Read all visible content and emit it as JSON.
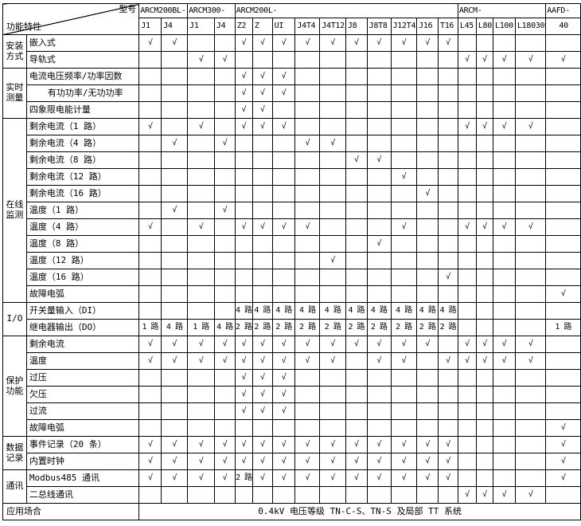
{
  "header": {
    "model_label": "型号",
    "feature_label": "功能特性",
    "groups": [
      {
        "name": "ARCM200BL-",
        "cols": [
          "J1",
          "J4"
        ]
      },
      {
        "name": "ARCM300-",
        "cols": [
          "J1",
          "J4"
        ]
      },
      {
        "name": "ARCM200L-",
        "cols": [
          "Z2",
          "Z",
          "UI",
          "J4T4",
          "J4T12",
          "J8",
          "J8T8",
          "J12T4",
          "J16",
          "T16"
        ]
      },
      {
        "name": "ARCM-",
        "cols": [
          "L45",
          "L80",
          "L100",
          "L18030"
        ]
      },
      {
        "name": "AAFD-",
        "cols": [
          "40"
        ]
      }
    ]
  },
  "check_glyph": "√",
  "row_groups": [
    {
      "name": "安装方式",
      "display_lines": [
        "安装",
        "方式"
      ],
      "rows": [
        {
          "label": "嵌入式",
          "cells": [
            "√",
            "√",
            "",
            "",
            "√",
            "√",
            "√",
            "√",
            "√",
            "√",
            "√",
            "√",
            "√",
            "√",
            "",
            "",
            "",
            "",
            ""
          ]
        },
        {
          "label": "导轨式",
          "cells": [
            "",
            "",
            "√",
            "√",
            "",
            "",
            "",
            "",
            "",
            "",
            "",
            "",
            "",
            "",
            "√",
            "√",
            "√",
            "√",
            "√"
          ]
        }
      ]
    },
    {
      "name": "实时测量",
      "display_lines": [
        "实时",
        "测量"
      ],
      "rows": [
        {
          "label": "电流电压频率/功率因数",
          "cells": [
            "",
            "",
            "",
            "",
            "√",
            "√",
            "√",
            "",
            "",
            "",
            "",
            "",
            "",
            "",
            "",
            "",
            "",
            "",
            ""
          ]
        },
        {
          "label": "有功功率/无功功率",
          "indent": true,
          "cells": [
            "",
            "",
            "",
            "",
            "√",
            "√",
            "√",
            "",
            "",
            "",
            "",
            "",
            "",
            "",
            "",
            "",
            "",
            "",
            ""
          ]
        },
        {
          "label": "四象限电能计量",
          "cells": [
            "",
            "",
            "",
            "",
            "√",
            "√",
            "",
            "",
            "",
            "",
            "",
            "",
            "",
            "",
            "",
            "",
            "",
            "",
            ""
          ]
        }
      ]
    },
    {
      "name": "在线监测",
      "display_lines": [
        "在线",
        "监测"
      ],
      "rows": [
        {
          "label": "剩余电流（1 路）",
          "cells": [
            "√",
            "",
            "√",
            "",
            "√",
            "√",
            "√",
            "",
            "",
            "",
            "",
            "",
            "",
            "",
            "√",
            "√",
            "√",
            "√",
            ""
          ]
        },
        {
          "label": "剩余电流（4 路）",
          "cells": [
            "",
            "√",
            "",
            "√",
            "",
            "",
            "",
            "√",
            "√",
            "",
            "",
            "",
            "",
            "",
            "",
            "",
            "",
            "",
            ""
          ]
        },
        {
          "label": "剩余电流（8 路）",
          "cells": [
            "",
            "",
            "",
            "",
            "",
            "",
            "",
            "",
            "",
            "√",
            "√",
            "",
            "",
            "",
            "",
            "",
            "",
            "",
            ""
          ]
        },
        {
          "label": "剩余电流（12 路）",
          "cells": [
            "",
            "",
            "",
            "",
            "",
            "",
            "",
            "",
            "",
            "",
            "",
            "√",
            "",
            "",
            "",
            "",
            "",
            "",
            ""
          ]
        },
        {
          "label": "剩余电流（16 路）",
          "cells": [
            "",
            "",
            "",
            "",
            "",
            "",
            "",
            "",
            "",
            "",
            "",
            "",
            "√",
            "",
            "",
            "",
            "",
            "",
            ""
          ]
        },
        {
          "label": "温度（1 路）",
          "cells": [
            "",
            "√",
            "",
            "√",
            "",
            "",
            "",
            "",
            "",
            "",
            "",
            "",
            "",
            "",
            "",
            "",
            "",
            "",
            ""
          ]
        },
        {
          "label": "温度（4 路）",
          "cells": [
            "√",
            "",
            "√",
            "",
            "√",
            "√",
            "√",
            "√",
            "",
            "",
            "",
            "√",
            "",
            "",
            "√",
            "√",
            "√",
            "√",
            ""
          ]
        },
        {
          "label": "温度（8 路）",
          "cells": [
            "",
            "",
            "",
            "",
            "",
            "",
            "",
            "",
            "",
            "",
            "√",
            "",
            "",
            "",
            "",
            "",
            "",
            "",
            ""
          ]
        },
        {
          "label": "温度（12 路）",
          "cells": [
            "",
            "",
            "",
            "",
            "",
            "",
            "",
            "",
            "√",
            "",
            "",
            "",
            "",
            "",
            "",
            "",
            "",
            "",
            ""
          ]
        },
        {
          "label": "温度（16 路）",
          "cells": [
            "",
            "",
            "",
            "",
            "",
            "",
            "",
            "",
            "",
            "",
            "",
            "",
            "",
            "√",
            "",
            "",
            "",
            "",
            ""
          ]
        },
        {
          "label": "故障电弧",
          "cells": [
            "",
            "",
            "",
            "",
            "",
            "",
            "",
            "",
            "",
            "",
            "",
            "",
            "",
            "",
            "",
            "",
            "",
            "",
            "√"
          ]
        }
      ]
    },
    {
      "name": "I/O",
      "display_lines": [
        "I/O"
      ],
      "rows": [
        {
          "label": "开关量输入（DI）",
          "cells": [
            "",
            "",
            "",
            "",
            "4 路",
            "4 路",
            "4 路",
            "4 路",
            "4 路",
            "4 路",
            "4 路",
            "4 路",
            "4 路",
            "4 路",
            "",
            "",
            "",
            "",
            ""
          ]
        },
        {
          "label": "继电器输出（DO）",
          "cells": [
            "1 路",
            "4 路",
            "1 路",
            "4 路",
            "2 路",
            "2 路",
            "2 路",
            "2 路",
            "2 路",
            "2 路",
            "2 路",
            "2 路",
            "2 路",
            "2 路",
            "",
            "",
            "",
            "",
            "1 路"
          ]
        }
      ]
    },
    {
      "name": "保护功能",
      "display_lines": [
        "保护",
        "功能"
      ],
      "rows": [
        {
          "label": "剩余电流",
          "cells": [
            "√",
            "√",
            "√",
            "√",
            "√",
            "√",
            "√",
            "√",
            "√",
            "√",
            "√",
            "√",
            "√",
            "",
            "√",
            "√",
            "√",
            "√",
            ""
          ]
        },
        {
          "label": "温度",
          "cells": [
            "√",
            "√",
            "√",
            "√",
            "√",
            "√",
            "√",
            "√",
            "√",
            "",
            "√",
            "√",
            "",
            "√",
            "√",
            "√",
            "√",
            "√",
            ""
          ]
        },
        {
          "label": "过压",
          "cells": [
            "",
            "",
            "",
            "",
            "√",
            "√",
            "√",
            "",
            "",
            "",
            "",
            "",
            "",
            "",
            "",
            "",
            "",
            "",
            ""
          ]
        },
        {
          "label": "欠压",
          "cells": [
            "",
            "",
            "",
            "",
            "√",
            "√",
            "√",
            "",
            "",
            "",
            "",
            "",
            "",
            "",
            "",
            "",
            "",
            "",
            ""
          ]
        },
        {
          "label": "过流",
          "cells": [
            "",
            "",
            "",
            "",
            "√",
            "√",
            "√",
            "",
            "",
            "",
            "",
            "",
            "",
            "",
            "",
            "",
            "",
            "",
            ""
          ]
        },
        {
          "label": "故障电弧",
          "cells": [
            "",
            "",
            "",
            "",
            "",
            "",
            "",
            "",
            "",
            "",
            "",
            "",
            "",
            "",
            "",
            "",
            "",
            "",
            "√"
          ]
        }
      ]
    },
    {
      "name": "数据记录",
      "display_lines": [
        "数据",
        "记录"
      ],
      "rows": [
        {
          "label": "事件记录（20 条）",
          "cells": [
            "√",
            "√",
            "√",
            "√",
            "√",
            "√",
            "√",
            "√",
            "√",
            "√",
            "√",
            "√",
            "√",
            "√",
            "",
            "",
            "",
            "",
            "√"
          ]
        },
        {
          "label": "内置时钟",
          "cells": [
            "√",
            "√",
            "√",
            "√",
            "√",
            "√",
            "√",
            "√",
            "√",
            "√",
            "√",
            "√",
            "√",
            "√",
            "",
            "",
            "",
            "",
            "√"
          ]
        }
      ]
    },
    {
      "name": "通讯",
      "display_lines": [
        "通讯"
      ],
      "rows": [
        {
          "label": "Modbus485 通讯",
          "cells": [
            "√",
            "√",
            "√",
            "√",
            "2 路",
            "√",
            "√",
            "√",
            "√",
            "√",
            "√",
            "√",
            "√",
            "√",
            "",
            "",
            "",
            "",
            "√"
          ]
        },
        {
          "label": "二总线通讯",
          "cells": [
            "",
            "",
            "",
            "",
            "",
            "",
            "",
            "",
            "",
            "",
            "",
            "",
            "",
            "",
            "√",
            "√",
            "√",
            "√",
            ""
          ]
        }
      ]
    }
  ],
  "footer": {
    "label": "应用场合",
    "value": "0.4kV 电压等级 TN-C-S、TN-S 及局部 TT 系统"
  }
}
